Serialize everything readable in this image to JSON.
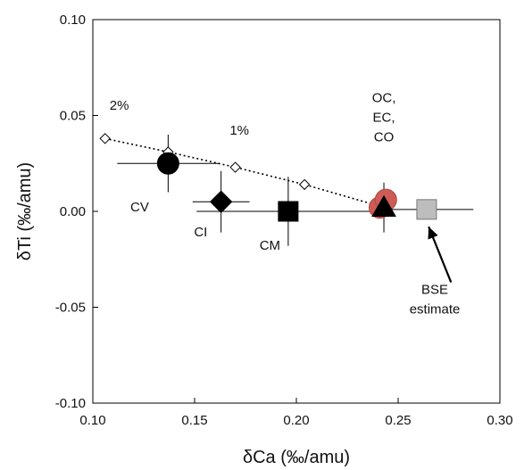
{
  "chart_data": {
    "type": "scatter",
    "xlabel": "δCa (‰/amu)",
    "ylabel": "δTi (‰/amu)",
    "xlim": [
      0.1,
      0.3
    ],
    "ylim": [
      -0.1,
      0.1
    ],
    "xticks": [
      "0.10",
      "0.15",
      "0.20",
      "0.25",
      "0.30"
    ],
    "yticks": [
      "-0.10",
      "-0.05",
      "0.00",
      "0.05",
      "0.10"
    ],
    "grid": false,
    "mixing_line": {
      "style": "dotted",
      "points": [
        {
          "x": 0.106,
          "y": 0.038
        },
        {
          "x": 0.137,
          "y": 0.031
        },
        {
          "x": 0.17,
          "y": 0.023
        },
        {
          "x": 0.204,
          "y": 0.014
        },
        {
          "x": 0.24,
          "y": 0.003
        }
      ],
      "labels": [
        {
          "text": "2%",
          "x": 0.113,
          "y": 0.053
        },
        {
          "text": "1%",
          "x": 0.172,
          "y": 0.04
        }
      ]
    },
    "points": [
      {
        "name": "CV",
        "x": 0.137,
        "y": 0.025,
        "xerr": 0.025,
        "yerr": 0.015,
        "marker": "circle",
        "color": "#000000",
        "label": {
          "text": "CV",
          "x": 0.123,
          "y": 0.0
        }
      },
      {
        "name": "CI",
        "x": 0.163,
        "y": 0.005,
        "xerr": 0.014,
        "yerr": 0.016,
        "marker": "diamond",
        "color": "#000000",
        "label": {
          "text": "CI",
          "x": 0.153,
          "y": -0.013
        }
      },
      {
        "name": "CM",
        "x": 0.196,
        "y": 0.0,
        "xerr": 0.045,
        "yerr": 0.018,
        "marker": "square",
        "color": "#000000",
        "label": {
          "text": "CM",
          "x": 0.187,
          "y": -0.02
        }
      },
      {
        "name": "OC",
        "x": 0.241,
        "y": 0.002,
        "xerr": 0.0,
        "yerr": 0.0,
        "marker": "circle",
        "color": "#cc5c55"
      },
      {
        "name": "EC",
        "x": 0.244,
        "y": 0.006,
        "xerr": 0.0,
        "yerr": 0.0,
        "marker": "circle",
        "color": "#cc5c55"
      },
      {
        "name": "CO",
        "x": 0.243,
        "y": 0.002,
        "xerr": 0.0,
        "yerr": 0.013,
        "marker": "triangle",
        "color": "#000000"
      },
      {
        "name": "BSE",
        "x": 0.264,
        "y": 0.001,
        "xerr": 0.023,
        "yerr": 0.0,
        "marker": "square",
        "color": "#bdbdbd"
      }
    ],
    "annotations": [
      {
        "lines": [
          "OC,",
          "EC,",
          "CO"
        ],
        "x": 0.243,
        "y": 0.057
      },
      {
        "lines": [
          "BSE",
          "estimate"
        ],
        "x": 0.268,
        "y": -0.043
      }
    ],
    "arrow": {
      "from": [
        0.276,
        -0.037
      ],
      "to": [
        0.265,
        -0.008
      ]
    }
  }
}
